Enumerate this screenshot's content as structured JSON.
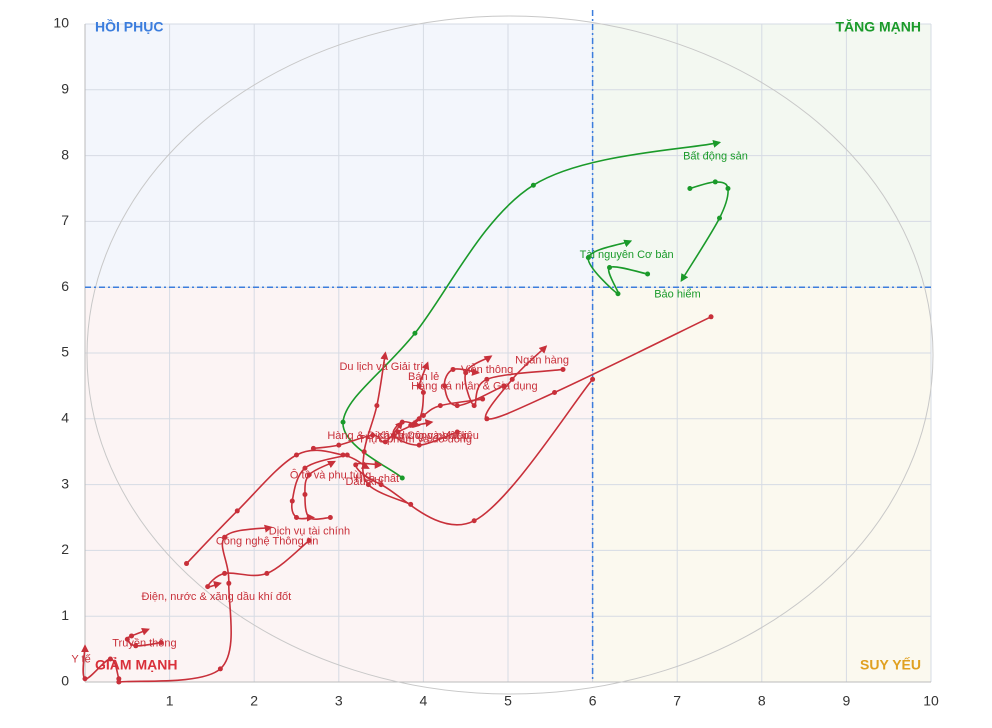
{
  "chart_data": {
    "type": "rotation",
    "xlim": [
      0,
      10
    ],
    "ylim": [
      0,
      10
    ],
    "xticks": [
      1,
      2,
      3,
      4,
      5,
      6,
      7,
      8,
      9,
      10
    ],
    "yticks": [
      0,
      1,
      2,
      3,
      4,
      5,
      6,
      7,
      8,
      9,
      10
    ],
    "grid": true,
    "dividers": {
      "x": 6,
      "y": 6
    },
    "quadrants": [
      {
        "label": "HỒI PHỤC",
        "color": "#3b7ddd",
        "corner": "top-left",
        "fill": "#f3f6fc"
      },
      {
        "label": "TĂNG MẠNH",
        "color": "#1a9a2a",
        "corner": "top-right",
        "fill": "#f3f8f1"
      },
      {
        "label": "GIẢM MẠNH",
        "color": "#d9303a",
        "corner": "bottom-left",
        "fill": "#fcf4f4"
      },
      {
        "label": "SUY YẾU",
        "color": "#e0a020",
        "corner": "bottom-right",
        "fill": "#fbf9ef"
      }
    ],
    "series": [
      {
        "name": "Bất động sản",
        "color": "#1a9a2a",
        "x": [
          3.75,
          3.05,
          3.9,
          5.3,
          7.5
        ],
        "y": [
          3.1,
          3.95,
          5.3,
          7.55,
          8.2
        ]
      },
      {
        "name": "Bảo hiểm",
        "color": "#1a9a2a",
        "x": [
          7.15,
          7.45,
          7.6,
          7.5,
          7.05
        ],
        "y": [
          7.5,
          7.6,
          7.5,
          7.05,
          6.1
        ]
      },
      {
        "name": "Tài nguyên Cơ bản",
        "color": "#1a9a2a",
        "x": [
          6.65,
          6.2,
          6.3,
          5.95,
          6.45
        ],
        "y": [
          6.2,
          6.3,
          5.9,
          6.45,
          6.7
        ]
      },
      {
        "name": "Ngân hàng",
        "color": "#c8303a",
        "x": [
          7.4,
          5.55,
          4.75,
          5.05,
          5.45
        ],
        "y": [
          5.55,
          4.4,
          4.0,
          4.6,
          5.1
        ]
      },
      {
        "name": "Viễn thông",
        "color": "#c8303a",
        "x": [
          5.65,
          4.75,
          4.6,
          4.5,
          4.8
        ],
        "y": [
          4.75,
          4.6,
          4.2,
          4.7,
          4.95
        ]
      },
      {
        "name": "Du lịch và Giải trí",
        "color": "#c8303a",
        "x": [
          3.85,
          3.35,
          3.3,
          3.45,
          3.55
        ],
        "y": [
          2.7,
          3.0,
          3.5,
          4.2,
          5.0
        ]
      },
      {
        "name": "Bán lẻ",
        "color": "#c8303a",
        "x": [
          3.7,
          3.95,
          4.0,
          3.95,
          4.05
        ],
        "y": [
          3.8,
          4.0,
          4.4,
          4.5,
          4.85
        ]
      },
      {
        "name": "Hóa chất",
        "color": "#c8303a",
        "x": [
          6.0,
          4.6,
          3.5,
          3.2,
          3.5
        ],
        "y": [
          4.6,
          2.45,
          3.0,
          3.3,
          3.3
        ]
      },
      {
        "name": "Hàng cá nhân & Gia dụng",
        "color": "#c8303a",
        "x": [
          4.95,
          4.4,
          4.25,
          4.35,
          4.65
        ],
        "y": [
          4.5,
          4.2,
          4.5,
          4.75,
          4.7
        ]
      },
      {
        "name": "Xây dựng và Vật liệu",
        "color": "#c8303a",
        "x": [
          4.7,
          4.2,
          4.0,
          3.85,
          4.1
        ],
        "y": [
          4.3,
          4.2,
          4.05,
          3.9,
          3.95
        ]
      },
      {
        "name": "Thực phẩm và đồ uống",
        "color": "#c8303a",
        "x": [
          4.4,
          3.95,
          3.65,
          3.75,
          3.95
        ],
        "y": [
          3.8,
          3.6,
          3.75,
          3.95,
          3.9
        ]
      },
      {
        "name": "Hàng & Dịch vụ Công nghiệp",
        "color": "#c8303a",
        "x": [
          2.7,
          3.0,
          3.4,
          3.55,
          3.75
        ],
        "y": [
          3.55,
          3.6,
          3.75,
          3.65,
          3.95
        ]
      },
      {
        "name": "Dầu khí",
        "color": "#c8303a",
        "x": [
          1.2,
          1.8,
          2.5,
          3.05,
          3.35
        ],
        "y": [
          1.8,
          2.6,
          3.45,
          3.45,
          3.25
        ]
      },
      {
        "name": "Ô tô và phụ tùng",
        "color": "#c8303a",
        "x": [
          2.9,
          2.65,
          2.6,
          2.65,
          2.95
        ],
        "y": [
          2.5,
          2.5,
          2.85,
          3.15,
          3.35
        ]
      },
      {
        "name": "Dịch vụ tài chính",
        "color": "#c8303a",
        "x": [
          3.1,
          2.6,
          2.45,
          2.5,
          2.7
        ],
        "y": [
          3.45,
          3.25,
          2.75,
          2.5,
          2.5
        ]
      },
      {
        "name": "Điện, nước & xăng dầu khí đốt",
        "color": "#c8303a",
        "x": [
          2.65,
          2.15,
          1.65,
          1.45,
          1.6
        ],
        "y": [
          2.15,
          1.65,
          1.65,
          1.45,
          1.5
        ]
      },
      {
        "name": "Công nghệ Thông tin",
        "color": "#c8303a",
        "x": [
          0.4,
          1.6,
          1.7,
          1.65,
          2.2
        ],
        "y": [
          0.0,
          0.2,
          1.5,
          2.2,
          2.35
        ]
      },
      {
        "name": "Truyền thông",
        "color": "#c8303a",
        "x": [
          0.9,
          0.6,
          0.5,
          0.55,
          0.75
        ],
        "y": [
          0.6,
          0.55,
          0.65,
          0.7,
          0.8
        ]
      },
      {
        "name": "Y tế",
        "color": "#c8303a",
        "x": [
          0.4,
          0.3,
          0.0,
          0.0
        ],
        "y": [
          0.05,
          0.35,
          0.05,
          0.55
        ]
      }
    ]
  }
}
